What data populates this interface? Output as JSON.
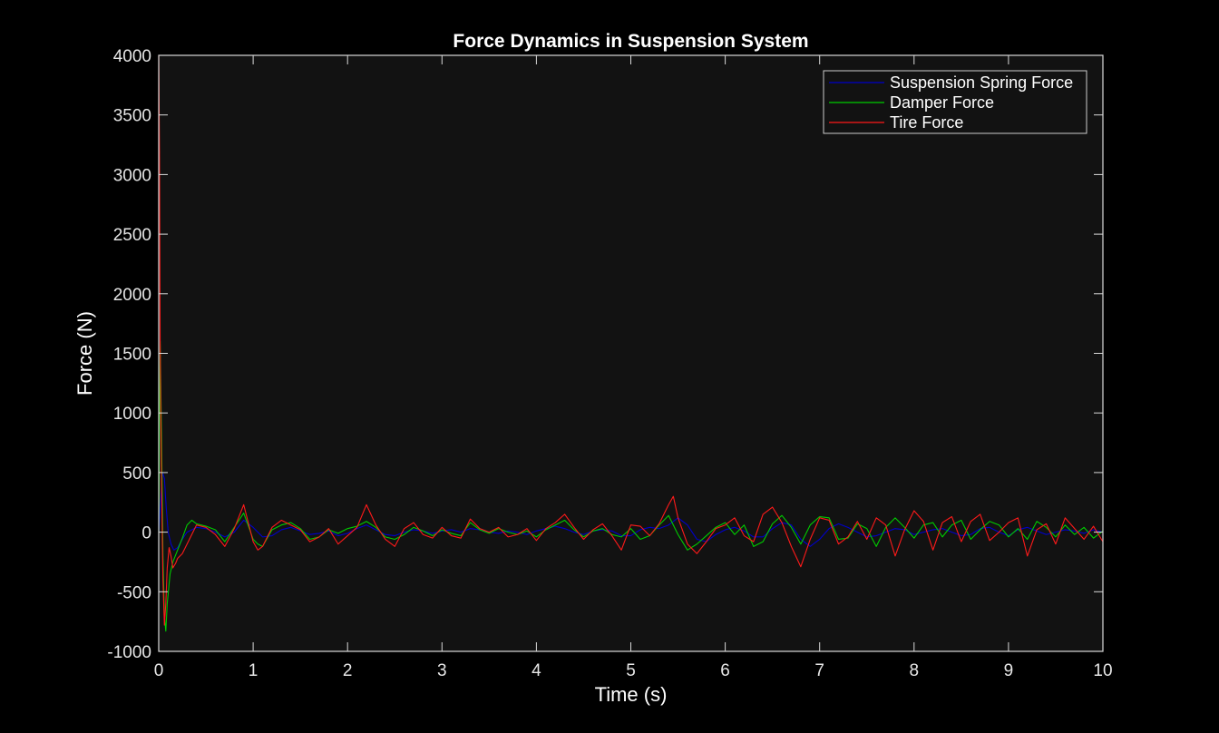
{
  "chart_data": {
    "type": "line",
    "title": "Force Dynamics in Suspension System",
    "xlabel": "Time (s)",
    "ylabel": "Force (N)",
    "xlim": [
      0,
      10
    ],
    "ylim": [
      -1000,
      4000
    ],
    "xticks": [
      0,
      1,
      2,
      3,
      4,
      5,
      6,
      7,
      8,
      9,
      10
    ],
    "yticks": [
      -1000,
      -500,
      0,
      500,
      1000,
      1500,
      2000,
      2500,
      3000,
      3500,
      4000
    ],
    "grid": false,
    "legend_position": "top-right",
    "background_color": "#121212",
    "axis_color": "#d9d9d9",
    "series": [
      {
        "name": "Suspension Spring Force",
        "color": "#0000cc",
        "x": [
          0,
          0.02,
          0.04,
          0.06,
          0.08,
          0.1,
          0.13,
          0.16,
          0.2,
          0.25,
          0.3,
          0.4,
          0.5,
          0.6,
          0.7,
          0.8,
          0.9,
          1.0,
          1.1,
          1.2,
          1.3,
          1.4,
          1.5,
          1.6,
          1.7,
          1.8,
          1.9,
          2.0,
          2.1,
          2.2,
          2.3,
          2.4,
          2.5,
          2.6,
          2.7,
          2.8,
          2.9,
          3.0,
          3.1,
          3.2,
          3.3,
          3.4,
          3.5,
          3.6,
          3.7,
          3.8,
          3.9,
          4.0,
          4.1,
          4.2,
          4.3,
          4.4,
          4.5,
          4.6,
          4.7,
          4.8,
          4.9,
          5.0,
          5.1,
          5.2,
          5.3,
          5.4,
          5.5,
          5.6,
          5.7,
          5.8,
          5.9,
          6.0,
          6.1,
          6.2,
          6.3,
          6.4,
          6.5,
          6.6,
          6.7,
          6.8,
          6.9,
          7.0,
          7.1,
          7.2,
          7.3,
          7.4,
          7.5,
          7.6,
          7.7,
          7.8,
          7.9,
          8.0,
          8.1,
          8.2,
          8.3,
          8.4,
          8.5,
          8.6,
          8.7,
          8.8,
          8.9,
          9.0,
          9.1,
          9.2,
          9.3,
          9.4,
          9.5,
          9.6,
          9.7,
          9.8,
          9.9,
          10.0
        ],
        "values": [
          0,
          250,
          500,
          450,
          200,
          0,
          -100,
          -150,
          -130,
          -60,
          0,
          40,
          30,
          0,
          -40,
          0,
          100,
          40,
          -40,
          -30,
          20,
          40,
          10,
          -20,
          -10,
          10,
          -30,
          -10,
          30,
          60,
          20,
          -20,
          -30,
          0,
          20,
          10,
          -10,
          10,
          20,
          0,
          30,
          20,
          0,
          -10,
          10,
          0,
          -20,
          10,
          30,
          50,
          30,
          0,
          -20,
          10,
          20,
          10,
          -30,
          -30,
          20,
          40,
          30,
          60,
          120,
          60,
          -60,
          -80,
          -20,
          20,
          40,
          10,
          -40,
          -40,
          30,
          80,
          60,
          -60,
          -120,
          -60,
          30,
          70,
          40,
          0,
          -40,
          -30,
          0,
          30,
          20,
          -20,
          0,
          20,
          30,
          0,
          -30,
          -20,
          30,
          40,
          0,
          -30,
          20,
          40,
          10,
          -20,
          0,
          20,
          10,
          -10,
          20,
          0
        ]
      },
      {
        "name": "Damper Force",
        "color": "#00cc00",
        "x": [
          0,
          0.015,
          0.03,
          0.045,
          0.06,
          0.075,
          0.09,
          0.12,
          0.15,
          0.2,
          0.25,
          0.3,
          0.35,
          0.4,
          0.5,
          0.6,
          0.7,
          0.8,
          0.9,
          1.0,
          1.05,
          1.1,
          1.2,
          1.3,
          1.4,
          1.5,
          1.6,
          1.7,
          1.8,
          1.9,
          2.0,
          2.1,
          2.2,
          2.3,
          2.4,
          2.5,
          2.6,
          2.7,
          2.8,
          2.9,
          3.0,
          3.1,
          3.2,
          3.3,
          3.4,
          3.5,
          3.6,
          3.7,
          3.8,
          3.9,
          4.0,
          4.1,
          4.2,
          4.3,
          4.4,
          4.5,
          4.6,
          4.7,
          4.8,
          4.9,
          5.0,
          5.1,
          5.2,
          5.3,
          5.4,
          5.5,
          5.6,
          5.7,
          5.8,
          5.9,
          6.0,
          6.1,
          6.2,
          6.3,
          6.4,
          6.5,
          6.6,
          6.7,
          6.8,
          6.9,
          7.0,
          7.1,
          7.2,
          7.3,
          7.4,
          7.5,
          7.6,
          7.7,
          7.8,
          7.9,
          8.0,
          8.1,
          8.2,
          8.3,
          8.4,
          8.5,
          8.6,
          8.7,
          8.8,
          8.9,
          9.0,
          9.1,
          9.2,
          9.3,
          9.4,
          9.5,
          9.6,
          9.7,
          9.8,
          9.9,
          10.0
        ],
        "values": [
          0,
          1600,
          800,
          -200,
          -700,
          -830,
          -600,
          -350,
          -250,
          -150,
          -50,
          60,
          100,
          70,
          50,
          20,
          -80,
          40,
          160,
          -60,
          -100,
          -120,
          20,
          60,
          80,
          30,
          -60,
          -40,
          20,
          -10,
          30,
          50,
          90,
          40,
          -40,
          -60,
          -20,
          40,
          10,
          -30,
          20,
          -10,
          -30,
          80,
          20,
          -10,
          30,
          0,
          -20,
          10,
          -40,
          20,
          60,
          100,
          20,
          -40,
          10,
          30,
          -20,
          -40,
          30,
          -60,
          -30,
          60,
          140,
          -20,
          -150,
          -100,
          -30,
          40,
          80,
          -20,
          60,
          -120,
          -80,
          70,
          140,
          40,
          -100,
          60,
          130,
          120,
          -60,
          -50,
          70,
          30,
          -120,
          40,
          120,
          40,
          -50,
          60,
          80,
          -40,
          60,
          100,
          -60,
          20,
          90,
          60,
          -40,
          30,
          -60,
          90,
          40,
          -40,
          60,
          -20,
          40,
          -50,
          10
        ]
      },
      {
        "name": "Tire Force",
        "color": "#ff1a1a",
        "x": [
          0,
          0.008,
          0.015,
          0.03,
          0.045,
          0.06,
          0.075,
          0.09,
          0.11,
          0.13,
          0.15,
          0.18,
          0.2,
          0.25,
          0.3,
          0.35,
          0.4,
          0.5,
          0.6,
          0.7,
          0.8,
          0.9,
          1.0,
          1.05,
          1.1,
          1.2,
          1.3,
          1.4,
          1.5,
          1.6,
          1.7,
          1.8,
          1.9,
          2.0,
          2.1,
          2.2,
          2.3,
          2.4,
          2.5,
          2.6,
          2.7,
          2.8,
          2.9,
          3.0,
          3.1,
          3.2,
          3.3,
          3.4,
          3.5,
          3.6,
          3.7,
          3.8,
          3.9,
          4.0,
          4.1,
          4.2,
          4.3,
          4.4,
          4.5,
          4.6,
          4.7,
          4.8,
          4.9,
          5.0,
          5.1,
          5.2,
          5.3,
          5.4,
          5.45,
          5.5,
          5.6,
          5.7,
          5.8,
          5.9,
          6.0,
          6.1,
          6.2,
          6.3,
          6.4,
          6.5,
          6.6,
          6.7,
          6.8,
          6.9,
          7.0,
          7.1,
          7.2,
          7.3,
          7.4,
          7.5,
          7.6,
          7.7,
          7.8,
          7.9,
          8.0,
          8.1,
          8.2,
          8.3,
          8.4,
          8.5,
          8.6,
          8.7,
          8.8,
          8.9,
          9.0,
          9.1,
          9.2,
          9.3,
          9.4,
          9.5,
          9.6,
          9.7,
          9.8,
          9.9,
          10.0
        ],
        "values": [
          4000,
          3200,
          1600,
          400,
          -400,
          -780,
          -600,
          -300,
          -130,
          -200,
          -300,
          -260,
          -220,
          -180,
          -100,
          -20,
          60,
          40,
          -20,
          -120,
          30,
          230,
          -80,
          -150,
          -120,
          40,
          100,
          60,
          20,
          -80,
          -40,
          30,
          -100,
          -30,
          40,
          230,
          60,
          -60,
          -120,
          30,
          80,
          -20,
          -50,
          40,
          -30,
          -50,
          110,
          30,
          0,
          40,
          -40,
          -20,
          30,
          -70,
          30,
          80,
          150,
          40,
          -60,
          20,
          70,
          -30,
          -150,
          60,
          50,
          -30,
          70,
          230,
          300,
          120,
          -100,
          -180,
          -80,
          30,
          60,
          120,
          -30,
          -80,
          150,
          210,
          80,
          -120,
          -290,
          -60,
          120,
          100,
          -100,
          -40,
          90,
          -60,
          120,
          60,
          -200,
          20,
          180,
          90,
          -150,
          80,
          130,
          -80,
          90,
          150,
          -70,
          0,
          80,
          120,
          -200,
          20,
          70,
          -100,
          120,
          30,
          -60,
          50,
          -80
        ]
      }
    ]
  }
}
